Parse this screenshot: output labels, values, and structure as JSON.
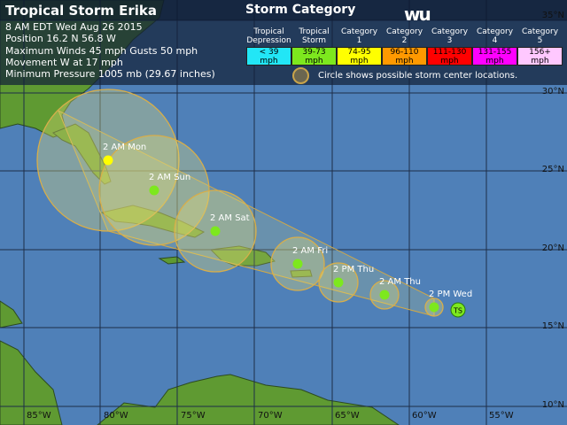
{
  "storm": {
    "title": "Tropical Storm Erika",
    "info": [
      "8 AM EDT Wed Aug 26 2015",
      "Position 16.2 N 56.8 W",
      "Maximum Winds 45 mph  Gusts 50 mph",
      "Movement W at 17 mph",
      "Minimum Pressure 1005 mb (29.67 inches)"
    ],
    "current_icon": "TS"
  },
  "legend": {
    "title": "Storm Category",
    "logo": "wu",
    "categories": [
      {
        "name": "Tropical Depression",
        "range": "< 39 mph",
        "color": "#22e6f6"
      },
      {
        "name": "Tropical Storm",
        "range": "39-73 mph",
        "color": "#7de81e"
      },
      {
        "name": "Category 1",
        "range": "74-95 mph",
        "color": "#ffff00"
      },
      {
        "name": "Category 2",
        "range": "96-110 mph",
        "color": "#ff9900"
      },
      {
        "name": "Category 3",
        "range": "111-130 mph",
        "color": "#ff0000"
      },
      {
        "name": "Category 4",
        "range": "131-155 mph",
        "color": "#ff00ff"
      },
      {
        "name": "Category 5",
        "range": "156+ mph",
        "color": "#ffc8ff"
      }
    ],
    "note": "Circle shows possible storm center locations."
  },
  "forecast": [
    {
      "label": "2 PM Wed"
    },
    {
      "label": "2 AM Thu"
    },
    {
      "label": "2 PM Thu"
    },
    {
      "label": "2 AM Fri"
    },
    {
      "label": "2 AM Sat"
    },
    {
      "label": "2 AM Sun"
    },
    {
      "label": "2 AM Mon"
    }
  ],
  "grid": {
    "lat": [
      "35°N",
      "30°N",
      "25°N",
      "20°N",
      "15°N",
      "10°N"
    ],
    "lon": [
      "85°W",
      "80°W",
      "75°W",
      "70°W",
      "65°W",
      "60°W",
      "55°W"
    ]
  }
}
